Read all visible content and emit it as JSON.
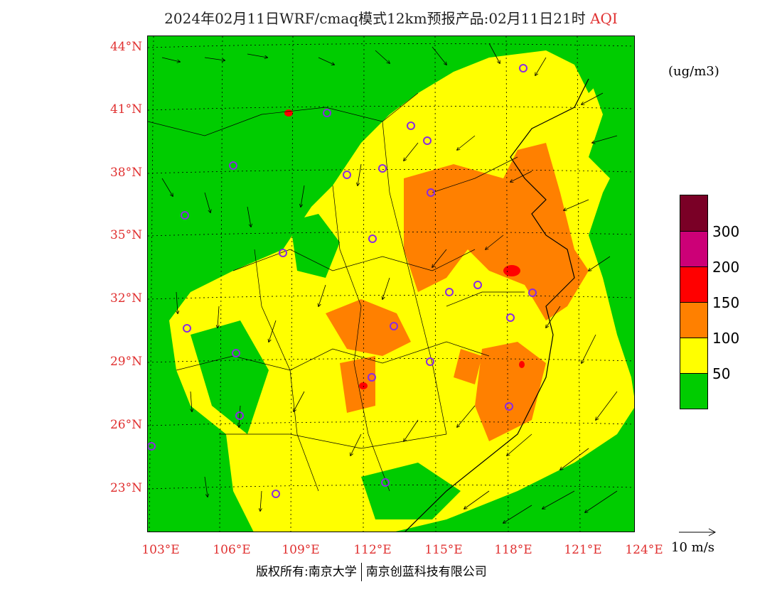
{
  "title": {
    "main": "2024年02月11日WRF/cmaq模式12km预报产品:02月11日21时",
    "product": "AQI"
  },
  "unit_label": "(ug/m3)",
  "lat_labels": [
    "44°N",
    "41°N",
    "38°N",
    "35°N",
    "32°N",
    "29°N",
    "26°N",
    "23°N"
  ],
  "lon_labels": [
    "103°E",
    "106°E",
    "109°E",
    "112°E",
    "115°E",
    "118°E",
    "121°E",
    "124°E"
  ],
  "legend": {
    "colors": [
      "#7a0026",
      "#cc0077",
      "#ff0000",
      "#ff8000",
      "#ffff00",
      "#00cc00"
    ],
    "labels": [
      "300",
      "200",
      "150",
      "100",
      "50"
    ]
  },
  "colors": {
    "green": "#00cc00",
    "yellow": "#ffff00",
    "orange": "#ff8000",
    "red": "#ff0000",
    "magenta": "#cc0077",
    "maroon": "#7a0026",
    "station": "#8a2be2"
  },
  "wind_reference": "10  m/s",
  "footer": {
    "left": "版权所有:南京大学",
    "right": "南京创蓝科技有限公司"
  }
}
